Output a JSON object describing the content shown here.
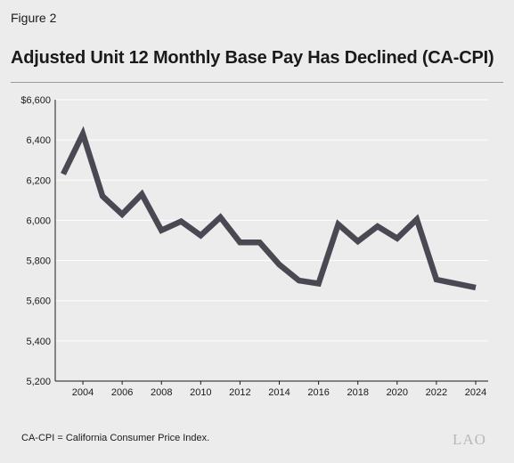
{
  "figure_label": "Figure 2",
  "footnote": "CA-CPI = California Consumer Price Index.",
  "logo_text": "LAO",
  "colors": {
    "line": "#4a4852",
    "grid": "#ffffff",
    "axis": "#1a1a1a",
    "background": "#ececec"
  },
  "chart_data": {
    "type": "line",
    "title": "Adjusted Unit 12 Monthly Base Pay Has Declined (CA-CPI)",
    "xlabel": "",
    "ylabel": "",
    "ylim": [
      5200,
      6600
    ],
    "xlim": [
      2003,
      2024
    ],
    "grid": true,
    "yticks": [
      5200,
      5400,
      5600,
      5800,
      6000,
      6200,
      6400,
      6600
    ],
    "ytick_labels": [
      "5,200",
      "5,400",
      "5,600",
      "5,800",
      "6,000",
      "6,200",
      "6,400",
      "$6,600"
    ],
    "xticks": [
      2004,
      2006,
      2008,
      2010,
      2012,
      2014,
      2016,
      2018,
      2020,
      2022,
      2024
    ],
    "xtick_labels": [
      "2004",
      "2006",
      "2008",
      "2010",
      "2012",
      "2014",
      "2016",
      "2018",
      "2020",
      "2022",
      "2024"
    ],
    "series": [
      {
        "x": [
          2003,
          2004,
          2005,
          2006,
          2007,
          2008,
          2009,
          2010,
          2011,
          2012,
          2013,
          2014,
          2015,
          2016,
          2017,
          2018,
          2019,
          2020,
          2021,
          2022,
          2023,
          2024
        ],
        "values": [
          6230,
          6430,
          6120,
          6030,
          6130,
          5950,
          5995,
          5925,
          6015,
          5890,
          5890,
          5780,
          5700,
          5685,
          5980,
          5895,
          5970,
          5910,
          6005,
          5705,
          5685,
          5665
        ]
      }
    ]
  }
}
